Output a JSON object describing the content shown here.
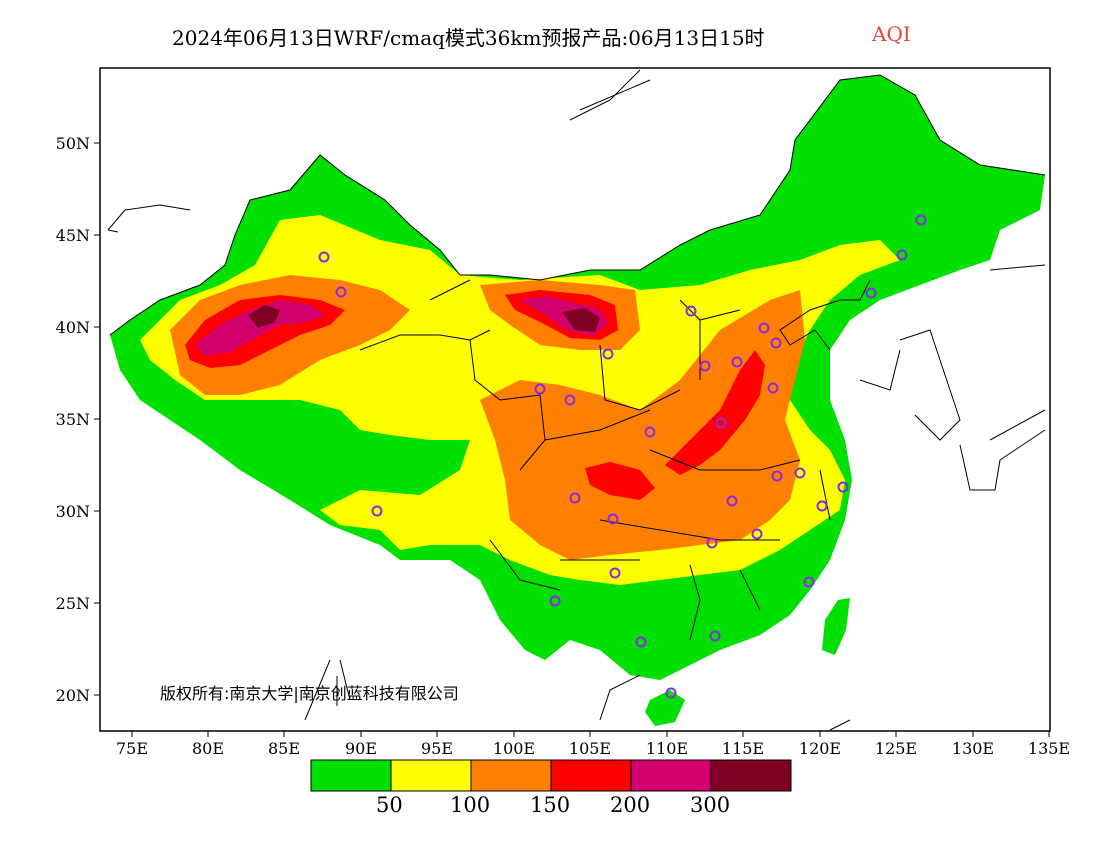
{
  "title": {
    "main": "2024年06月13日WRF/cmaq模式36km预报产品:06月13日15时",
    "variable": "AQI"
  },
  "map": {
    "lon_labels": [
      "75E",
      "80E",
      "85E",
      "90E",
      "95E",
      "100E",
      "105E",
      "110E",
      "115E",
      "120E",
      "125E",
      "130E",
      "135E"
    ],
    "lat_labels": [
      "50N",
      "45N",
      "40N",
      "35N",
      "30N",
      "25N",
      "20N"
    ],
    "extent": {
      "lon": [
        73,
        135
      ],
      "lat": [
        18,
        54
      ]
    }
  },
  "legend": {
    "colors": [
      "#00e000",
      "#ffff00",
      "#ff8000",
      "#ff0000",
      "#d2006e",
      "#7e0023"
    ],
    "labels": [
      "50",
      "100",
      "150",
      "200",
      "300"
    ]
  },
  "copyright": "版权所有:南京大学|南京创蓝科技有限公司"
}
